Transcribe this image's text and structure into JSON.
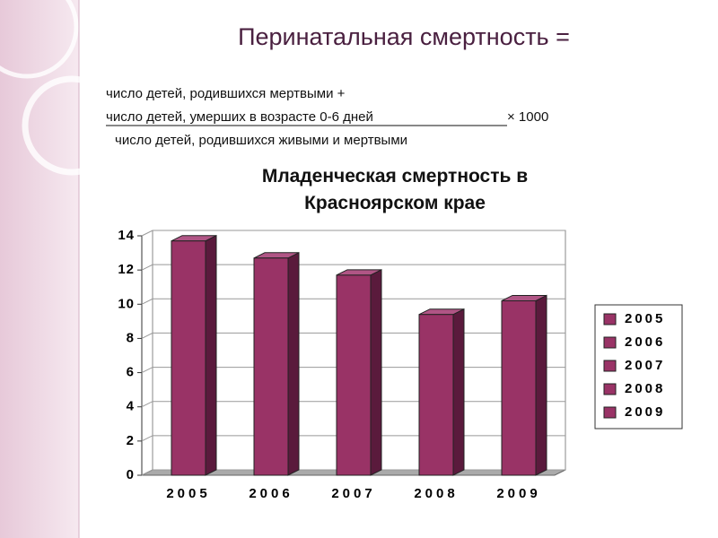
{
  "slide": {
    "title": "Перинатальная смертность =",
    "formula": {
      "line1": "число детей, родившихся мертвыми +",
      "line2": "число детей, умерших в возрасте 0-6 дней",
      "multiplier": "× 1000",
      "line3": "число детей, родившихся живыми и мертвыми"
    }
  },
  "chart_data": {
    "type": "bar",
    "title": "Младенческая смертность в Красноярском крае",
    "categories": [
      "2005",
      "2006",
      "2007",
      "2008",
      "2009"
    ],
    "values": [
      13.7,
      12.7,
      11.7,
      9.4,
      10.2
    ],
    "color": "#993366",
    "ylim": [
      0,
      14
    ],
    "yticks": [
      0,
      2,
      4,
      6,
      8,
      10,
      12,
      14
    ],
    "grid": true,
    "legend": "right"
  }
}
